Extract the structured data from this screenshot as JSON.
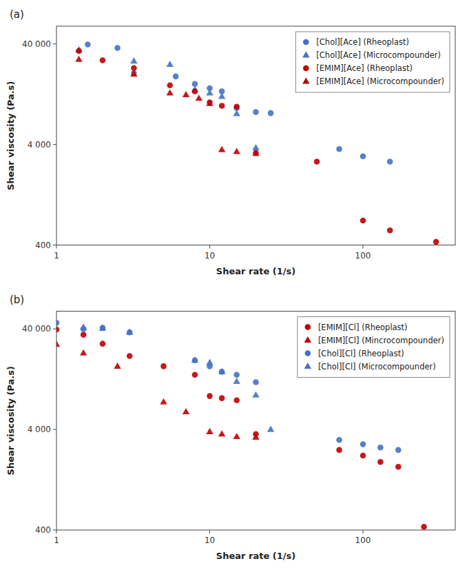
{
  "chart_data": [
    {
      "type": "scatter",
      "title": "(a)",
      "xlabel": "Shear rate (1/s)",
      "ylabel": "Shear viscosity (Pa.s)",
      "log": true,
      "grid": false,
      "legend": "upper right",
      "xlim": [
        1,
        400
      ],
      "ylim": [
        400,
        60000
      ],
      "xticks": [
        1,
        10,
        100
      ],
      "yticks": [
        400,
        {
          "value": 4000,
          "label": "4 000"
        },
        {
          "value": 40000,
          "label": "40 000"
        }
      ],
      "series": [
        {
          "name": "[Chol][Ace] (Rheoplast)",
          "color": "#4472C4",
          "marker": "circle",
          "x": [
            1.6,
            2.5,
            3.2,
            6.0,
            8.0,
            10.0,
            12.0,
            15.0,
            20.0,
            25.0,
            70.0,
            100.0,
            150.0
          ],
          "values": [
            39500,
            36500,
            20500,
            19000,
            16000,
            14500,
            13500,
            9200,
            8400,
            8200,
            3600,
            3050,
            2700
          ]
        },
        {
          "name": "[Chol][Ace] (Microcompounder)",
          "color": "#4472C4",
          "marker": "triangle",
          "x": [
            1.4,
            3.2,
            5.5,
            8.0,
            10.0,
            12.0,
            15.0,
            20.0
          ],
          "values": [
            35000,
            27000,
            25000,
            14000,
            13000,
            12000,
            8100,
            3700
          ]
        },
        {
          "name": "[EMIM][Ace] (Rheoplast)",
          "color": "#C00000",
          "marker": "circle",
          "x": [
            1.4,
            2.0,
            3.2,
            5.5,
            8.0,
            10.0,
            12.0,
            15.0,
            20.0,
            50.0,
            100.0,
            150.0,
            300.0
          ],
          "values": [
            34000,
            27500,
            23000,
            15500,
            13500,
            10500,
            9700,
            9500,
            3300,
            2700,
            700,
            560,
            430
          ]
        },
        {
          "name": "[EMIM][Ace] (Microcompounder)",
          "color": "#C00000",
          "marker": "triangle",
          "x": [
            1.4,
            3.2,
            5.5,
            7.0,
            8.5,
            10.0,
            12.0,
            15.0,
            20.0
          ],
          "values": [
            28000,
            20000,
            13000,
            12500,
            11500,
            10200,
            3550,
            3400,
            3250
          ]
        }
      ]
    },
    {
      "type": "scatter",
      "title": "(b)",
      "xlabel": "Shear rate (1/s)",
      "ylabel": "Shear viscosity (Pa.s)",
      "log": true,
      "grid": false,
      "legend": "upper right",
      "xlim": [
        1,
        400
      ],
      "ylim": [
        400,
        60000
      ],
      "xticks": [
        1,
        10,
        100
      ],
      "yticks": [
        400,
        {
          "value": 4000,
          "label": "4 000"
        },
        {
          "value": 40000,
          "label": "40 000"
        }
      ],
      "series": [
        {
          "name": "[EMIM][Cl] (Rheoplast)",
          "color": "#C00000",
          "marker": "circle",
          "x": [
            1.0,
            1.5,
            2.0,
            3.0,
            5.0,
            8.0,
            10.0,
            12.0,
            15.0,
            20.0,
            70.0,
            100.0,
            130.0,
            170.0,
            250.0
          ],
          "values": [
            39500,
            35000,
            28500,
            21500,
            17000,
            14000,
            8600,
            8200,
            7800,
            3600,
            2500,
            2200,
            1900,
            1700,
            430
          ]
        },
        {
          "name": "[EMIM][Cl] (Mincrocompounder)",
          "color": "#C00000",
          "marker": "triangle",
          "x": [
            1.0,
            1.5,
            2.5,
            5.0,
            7.0,
            10.0,
            12.0,
            15.0,
            20.0
          ],
          "values": [
            28000,
            23000,
            17000,
            7500,
            6000,
            3800,
            3600,
            3400,
            3350
          ]
        },
        {
          "name": "[Chol][Cl] (Rheoplast)",
          "color": "#4472C4",
          "marker": "circle",
          "x": [
            1.0,
            1.5,
            2.0,
            3.0,
            8.0,
            10.0,
            12.0,
            15.0,
            20.0,
            70.0,
            100.0,
            130.0,
            170.0
          ],
          "values": [
            46000,
            40000,
            41000,
            37000,
            19500,
            17000,
            15000,
            14000,
            11800,
            3150,
            2850,
            2650,
            2500
          ]
        },
        {
          "name": "[Chol][Cl] (Microcompounder)",
          "color": "#4472C4",
          "marker": "triangle",
          "x": [
            1.5,
            2.0,
            3.0,
            8.0,
            10.0,
            12.0,
            15.0,
            20.0,
            25.0
          ],
          "values": [
            41500,
            40500,
            37000,
            19500,
            18500,
            15000,
            12000,
            8800,
            4000
          ]
        }
      ]
    }
  ]
}
